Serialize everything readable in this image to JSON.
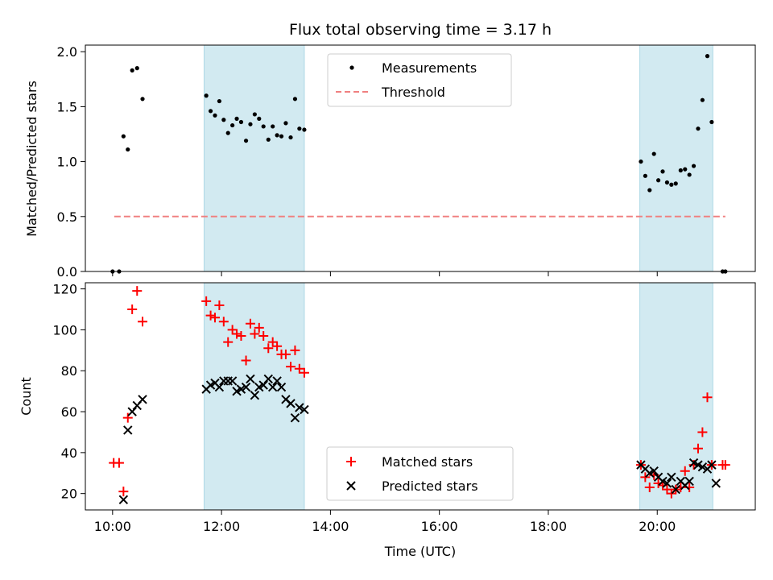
{
  "chart_data": {
    "type": "scatter",
    "title": "Flux total observing time = 3.17 h",
    "xlabel": "Time (UTC)",
    "x_ticks": [
      "10:00",
      "12:00",
      "14:00",
      "16:00",
      "18:00",
      "20:00"
    ],
    "x_tick_hours": [
      10,
      12,
      14,
      16,
      18,
      20
    ],
    "xlim_hours": [
      9.5,
      21.8
    ],
    "shaded_intervals_hours": [
      [
        11.68,
        13.52
      ],
      [
        19.68,
        21.02
      ]
    ],
    "shade_color": "#add8e6",
    "panels": [
      {
        "ylabel": "Matched/Predicted stars",
        "ylim": [
          0,
          2.06
        ],
        "y_ticks": [
          0.0,
          0.5,
          1.0,
          1.5,
          2.0
        ],
        "y_tick_labels": [
          "0.0",
          "0.5",
          "1.0",
          "1.5",
          "2.0"
        ],
        "legend_position": "top-center",
        "legend": [
          {
            "label": "Measurements",
            "marker": "dot",
            "color": "#000000"
          },
          {
            "label": "Threshold",
            "marker": "dashed-line",
            "color": "#f08080"
          }
        ],
        "threshold": {
          "value": 0.5,
          "x_range_hours": [
            10.03,
            21.25
          ],
          "color": "#f08080"
        },
        "series": [
          {
            "name": "Measurements",
            "color": "#000000",
            "x_hours": [
              10.0,
              10.12,
              10.2,
              10.28,
              10.36,
              10.45,
              10.55,
              11.72,
              11.8,
              11.88,
              11.96,
              12.04,
              12.12,
              12.2,
              12.28,
              12.36,
              12.45,
              12.53,
              12.61,
              12.69,
              12.77,
              12.86,
              12.94,
              13.02,
              13.1,
              13.18,
              13.27,
              13.35,
              13.43,
              13.52,
              19.7,
              19.78,
              19.86,
              19.94,
              20.02,
              20.1,
              20.18,
              20.26,
              20.34,
              20.43,
              20.51,
              20.59,
              20.67,
              20.75,
              20.83,
              20.92,
              21.0,
              21.2,
              21.25
            ],
            "y": [
              0.0,
              0.0,
              1.23,
              1.11,
              1.83,
              1.85,
              1.57,
              1.6,
              1.46,
              1.42,
              1.55,
              1.38,
              1.26,
              1.33,
              1.39,
              1.36,
              1.19,
              1.34,
              1.43,
              1.39,
              1.32,
              1.2,
              1.32,
              1.24,
              1.23,
              1.35,
              1.22,
              1.57,
              1.3,
              1.29,
              1.0,
              0.87,
              0.74,
              1.07,
              0.83,
              0.91,
              0.81,
              0.79,
              0.8,
              0.92,
              0.93,
              0.88,
              0.96,
              1.3,
              1.56,
              1.96,
              1.36,
              0.0,
              0.0
            ]
          }
        ]
      },
      {
        "ylabel": "Count",
        "ylim": [
          12,
          123
        ],
        "y_ticks": [
          20,
          40,
          60,
          80,
          100,
          120
        ],
        "y_tick_labels": [
          "20",
          "40",
          "60",
          "80",
          "100",
          "120"
        ],
        "legend_position": "lower-center",
        "legend": [
          {
            "label": "Matched stars",
            "marker": "plus",
            "color": "#ff0000"
          },
          {
            "label": "Predicted stars",
            "marker": "x",
            "color": "#000000"
          }
        ],
        "series": [
          {
            "name": "Matched stars",
            "marker": "plus",
            "color": "#ff0000",
            "x_hours": [
              10.02,
              10.12,
              10.2,
              10.28,
              10.36,
              10.45,
              10.55,
              11.72,
              11.8,
              11.88,
              11.96,
              12.04,
              12.12,
              12.2,
              12.28,
              12.36,
              12.45,
              12.53,
              12.61,
              12.69,
              12.77,
              12.86,
              12.94,
              13.02,
              13.1,
              13.18,
              13.27,
              13.35,
              13.43,
              13.52,
              19.7,
              19.78,
              19.86,
              19.94,
              20.02,
              20.1,
              20.18,
              20.26,
              20.34,
              20.43,
              20.51,
              20.59,
              20.67,
              20.75,
              20.83,
              20.92,
              21.0,
              21.2,
              21.25
            ],
            "y": [
              35,
              35,
              21,
              57,
              110,
              119,
              104,
              114,
              107,
              106,
              112,
              104,
              94,
              100,
              98,
              97,
              85,
              103,
              98,
              101,
              97,
              91,
              94,
              92,
              88,
              88,
              82,
              90,
              81,
              79,
              34,
              28,
              23,
              29,
              25,
              24,
              22,
              20,
              22,
              23,
              31,
              23,
              34,
              42,
              50,
              67,
              34,
              34,
              34
            ]
          },
          {
            "name": "Predicted stars",
            "marker": "x",
            "color": "#000000",
            "x_hours": [
              10.2,
              10.28,
              10.36,
              10.45,
              10.55,
              11.72,
              11.8,
              11.88,
              11.96,
              12.04,
              12.12,
              12.2,
              12.28,
              12.36,
              12.45,
              12.53,
              12.61,
              12.69,
              12.77,
              12.86,
              12.94,
              13.02,
              13.1,
              13.18,
              13.27,
              13.35,
              13.43,
              13.52,
              19.7,
              19.78,
              19.86,
              19.94,
              20.02,
              20.1,
              20.18,
              20.26,
              20.34,
              20.43,
              20.51,
              20.59,
              20.67,
              20.75,
              20.83,
              20.92,
              21.0,
              21.08
            ],
            "y": [
              17,
              51,
              60,
              63,
              66,
              71,
              73,
              74,
              72,
              75,
              75,
              75,
              70,
              71,
              72,
              76,
              68,
              72,
              73,
              76,
              72,
              75,
              72,
              66,
              64,
              57,
              62,
              61,
              34,
              32,
              30,
              31,
              28,
              26,
              25,
              28,
              22,
              26,
              24,
              26,
              35,
              34,
              33,
              32,
              34,
              25
            ]
          }
        ]
      }
    ]
  }
}
